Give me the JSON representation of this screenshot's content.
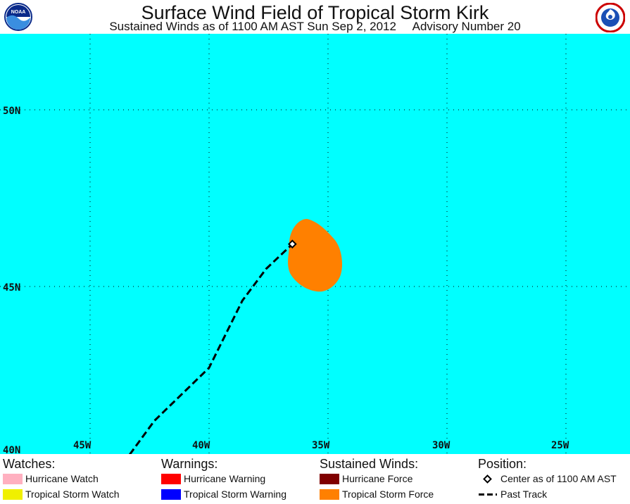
{
  "header": {
    "title": "Surface Wind Field of Tropical Storm Kirk",
    "subtitle": "Sustained Winds as of 1100 AM AST Sun Sep 2, 2012     Advisory Number 20",
    "left_logo": "NOAA",
    "right_logo": "NATIONAL WEATHER SERVICE"
  },
  "map": {
    "ocean_color": "#00ffff",
    "lat_labels": [
      "50N",
      "45N",
      "40N"
    ],
    "lon_labels": [
      "45W",
      "40W",
      "35W",
      "30W",
      "25W"
    ],
    "storm": {
      "center": {
        "lon": -36.5,
        "lat": 46.2
      },
      "tropical_storm_force_color": "#ff8000"
    },
    "past_track": [
      {
        "lon": -43.6,
        "lat": 40.0
      },
      {
        "lon": -42.3,
        "lat": 41.2
      },
      {
        "lon": -40.0,
        "lat": 42.7
      },
      {
        "lon": -38.6,
        "lat": 44.6
      },
      {
        "lon": -37.6,
        "lat": 45.5
      },
      {
        "lon": -36.5,
        "lat": 46.2
      }
    ]
  },
  "legend": {
    "watches": {
      "heading": "Watches:",
      "items": [
        {
          "label": "Hurricane Watch",
          "color": "#ffb0c0"
        },
        {
          "label": "Tropical Storm Watch",
          "color": "#f0f000"
        }
      ]
    },
    "warnings": {
      "heading": "Warnings:",
      "items": [
        {
          "label": "Hurricane Warning",
          "color": "#ff0000"
        },
        {
          "label": "Tropical Storm Warning",
          "color": "#0000ff"
        }
      ]
    },
    "winds": {
      "heading": "Sustained Winds:",
      "items": [
        {
          "label": "Hurricane Force",
          "color": "#800000"
        },
        {
          "label": "Tropical Storm Force",
          "color": "#ff8000"
        }
      ]
    },
    "position": {
      "heading": "Position:",
      "center_label": "Center as of 1100 AM AST",
      "track_label": "Past Track"
    }
  }
}
